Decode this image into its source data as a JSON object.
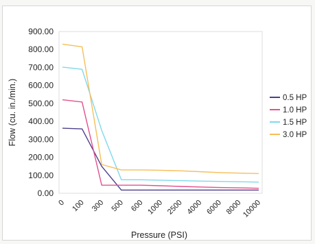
{
  "chart_data": {
    "type": "line",
    "xlabel": "Pressure (PSI)",
    "ylabel": "Flow (cu. in./min.)",
    "categories": [
      "0",
      "100",
      "300",
      "500",
      "600",
      "1000",
      "2500",
      "4000",
      "6000",
      "8000",
      "10000"
    ],
    "yticks": [
      "0.00",
      "100.00",
      "200.00",
      "300.00",
      "400.00",
      "500.00",
      "600.00",
      "700.00",
      "800.00",
      "900.00"
    ],
    "ylim": [
      0,
      900
    ],
    "grid": false,
    "legend_position": "right",
    "series": [
      {
        "name": "0.5 HP",
        "color": "#4b3f8c",
        "values": [
          362,
          358,
          150,
          18,
          18,
          18,
          18,
          18,
          18,
          18,
          18
        ]
      },
      {
        "name": "1.0 HP",
        "color": "#e2508c",
        "values": [
          520,
          508,
          45,
          45,
          45,
          42,
          38,
          35,
          32,
          30,
          28
        ]
      },
      {
        "name": "1.5 HP",
        "color": "#7fd8ec",
        "values": [
          702,
          690,
          350,
          75,
          75,
          73,
          70,
          68,
          66,
          64,
          62
        ]
      },
      {
        "name": "3.0 HP",
        "color": "#f6be58",
        "values": [
          830,
          815,
          160,
          130,
          130,
          128,
          125,
          120,
          115,
          112,
          110
        ]
      }
    ]
  }
}
